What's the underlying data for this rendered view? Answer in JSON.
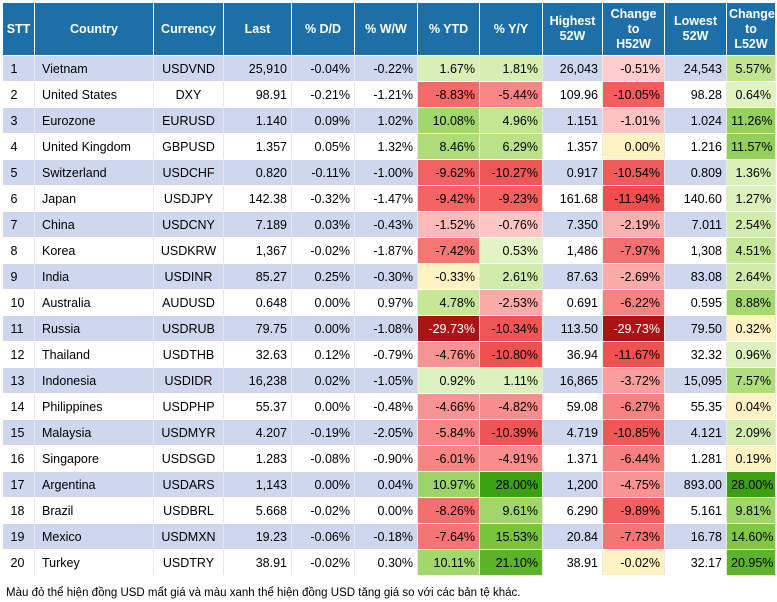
{
  "headers": [
    "STT",
    "Country",
    "Currency",
    "Last",
    "% D/D",
    "% W/W",
    "% YTD",
    "% Y/Y",
    "Highest 52W",
    "Change to H52W",
    "Lowest 52W",
    "Change to L52W"
  ],
  "rows": [
    {
      "stt": "1",
      "country": "Vietnam",
      "currency": "USDVND",
      "last": "25,910",
      "dd": "-0.04%",
      "ww": "-0.22%",
      "ytd": "1.67%",
      "yy": "1.81%",
      "high52": "26,043",
      "chg_h52": "-0.51%",
      "low52": "24,543",
      "chg_l52": "5.57%"
    },
    {
      "stt": "2",
      "country": "United States",
      "currency": "DXY",
      "last": "98.91",
      "dd": "-0.21%",
      "ww": "-1.21%",
      "ytd": "-8.83%",
      "yy": "-5.44%",
      "high52": "109.96",
      "chg_h52": "-10.05%",
      "low52": "98.28",
      "chg_l52": "0.64%"
    },
    {
      "stt": "3",
      "country": "Eurozone",
      "currency": "EURUSD",
      "last": "1.140",
      "dd": "0.09%",
      "ww": "1.02%",
      "ytd": "10.08%",
      "yy": "4.96%",
      "high52": "1.151",
      "chg_h52": "-1.01%",
      "low52": "1.024",
      "chg_l52": "11.26%"
    },
    {
      "stt": "4",
      "country": "United Kingdom",
      "currency": "GBPUSD",
      "last": "1.357",
      "dd": "0.05%",
      "ww": "1.32%",
      "ytd": "8.46%",
      "yy": "6.29%",
      "high52": "1.357",
      "chg_h52": "0.00%",
      "low52": "1.216",
      "chg_l52": "11.57%"
    },
    {
      "stt": "5",
      "country": "Switzerland",
      "currency": "USDCHF",
      "last": "0.820",
      "dd": "-0.11%",
      "ww": "-1.00%",
      "ytd": "-9.62%",
      "yy": "-10.27%",
      "high52": "0.917",
      "chg_h52": "-10.54%",
      "low52": "0.809",
      "chg_l52": "1.36%"
    },
    {
      "stt": "6",
      "country": "Japan",
      "currency": "USDJPY",
      "last": "142.38",
      "dd": "-0.32%",
      "ww": "-1.47%",
      "ytd": "-9.42%",
      "yy": "-9.23%",
      "high52": "161.68",
      "chg_h52": "-11.94%",
      "low52": "140.60",
      "chg_l52": "1.27%"
    },
    {
      "stt": "7",
      "country": "China",
      "currency": "USDCNY",
      "last": "7.189",
      "dd": "0.03%",
      "ww": "-0.43%",
      "ytd": "-1.52%",
      "yy": "-0.76%",
      "high52": "7.350",
      "chg_h52": "-2.19%",
      "low52": "7.011",
      "chg_l52": "2.54%"
    },
    {
      "stt": "8",
      "country": "Korea",
      "currency": "USDKRW",
      "last": "1,367",
      "dd": "-0.02%",
      "ww": "-1.87%",
      "ytd": "-7.42%",
      "yy": "0.53%",
      "high52": "1,486",
      "chg_h52": "-7.97%",
      "low52": "1,308",
      "chg_l52": "4.51%"
    },
    {
      "stt": "9",
      "country": "India",
      "currency": "USDINR",
      "last": "85.27",
      "dd": "0.25%",
      "ww": "-0.30%",
      "ytd": "-0.33%",
      "yy": "2.61%",
      "high52": "87.63",
      "chg_h52": "-2.69%",
      "low52": "83.08",
      "chg_l52": "2.64%"
    },
    {
      "stt": "10",
      "country": "Australia",
      "currency": "AUDUSD",
      "last": "0.648",
      "dd": "0.00%",
      "ww": "0.97%",
      "ytd": "4.78%",
      "yy": "-2.53%",
      "high52": "0.691",
      "chg_h52": "-6.22%",
      "low52": "0.595",
      "chg_l52": "8.88%"
    },
    {
      "stt": "11",
      "country": "Russia",
      "currency": "USDRUB",
      "last": "79.75",
      "dd": "0.00%",
      "ww": "-1.08%",
      "ytd": "-29.73%",
      "yy": "-10.34%",
      "high52": "113.50",
      "chg_h52": "-29.73%",
      "low52": "79.50",
      "chg_l52": "0.32%"
    },
    {
      "stt": "12",
      "country": "Thailand",
      "currency": "USDTHB",
      "last": "32.63",
      "dd": "0.12%",
      "ww": "-0.79%",
      "ytd": "-4.76%",
      "yy": "-10.80%",
      "high52": "36.94",
      "chg_h52": "-11.67%",
      "low52": "32.32",
      "chg_l52": "0.96%"
    },
    {
      "stt": "13",
      "country": "Indonesia",
      "currency": "USDIDR",
      "last": "16,238",
      "dd": "0.02%",
      "ww": "-1.05%",
      "ytd": "0.92%",
      "yy": "1.11%",
      "high52": "16,865",
      "chg_h52": "-3.72%",
      "low52": "15,095",
      "chg_l52": "7.57%"
    },
    {
      "stt": "14",
      "country": "Philippines",
      "currency": "USDPHP",
      "last": "55.37",
      "dd": "0.00%",
      "ww": "-0.48%",
      "ytd": "-4.66%",
      "yy": "-4.82%",
      "high52": "59.08",
      "chg_h52": "-6.27%",
      "low52": "55.35",
      "chg_l52": "0.04%"
    },
    {
      "stt": "15",
      "country": "Malaysia",
      "currency": "USDMYR",
      "last": "4.207",
      "dd": "-0.19%",
      "ww": "-2.05%",
      "ytd": "-5.84%",
      "yy": "-10.39%",
      "high52": "4.719",
      "chg_h52": "-10.85%",
      "low52": "4.121",
      "chg_l52": "2.09%"
    },
    {
      "stt": "16",
      "country": "Singapore",
      "currency": "USDSGD",
      "last": "1.283",
      "dd": "-0.08%",
      "ww": "-0.90%",
      "ytd": "-6.01%",
      "yy": "-4.91%",
      "high52": "1.371",
      "chg_h52": "-6.44%",
      "low52": "1.281",
      "chg_l52": "0.19%"
    },
    {
      "stt": "17",
      "country": "Argentina",
      "currency": "USDARS",
      "last": "1,143",
      "dd": "0.00%",
      "ww": "0.04%",
      "ytd": "10.97%",
      "yy": "28.00%",
      "high52": "1,200",
      "chg_h52": "-4.75%",
      "low52": "893.00",
      "chg_l52": "28.00%"
    },
    {
      "stt": "18",
      "country": "Brazil",
      "currency": "USDBRL",
      "last": "5.668",
      "dd": "-0.02%",
      "ww": "0.00%",
      "ytd": "-8.26%",
      "yy": "9.61%",
      "high52": "6.290",
      "chg_h52": "-9.89%",
      "low52": "5.161",
      "chg_l52": "9.81%"
    },
    {
      "stt": "19",
      "country": "Mexico",
      "currency": "USDMXN",
      "last": "19.23",
      "dd": "-0.06%",
      "ww": "-0.18%",
      "ytd": "-7.64%",
      "yy": "15.53%",
      "high52": "20.84",
      "chg_h52": "-7.73%",
      "low52": "16.78",
      "chg_l52": "14.60%"
    },
    {
      "stt": "20",
      "country": "Turkey",
      "currency": "USDTRY",
      "last": "38.91",
      "dd": "-0.02%",
      "ww": "0.30%",
      "ytd": "10.11%",
      "yy": "21.10%",
      "high52": "38.91",
      "chg_h52": "-0.02%",
      "low52": "32.17",
      "chg_l52": "20.95%"
    }
  ],
  "footnote": "Màu đỏ thể hiện đồng USD mất giá và màu xanh thể hiện đồng USD tăng giá so với các bản tệ khác."
}
